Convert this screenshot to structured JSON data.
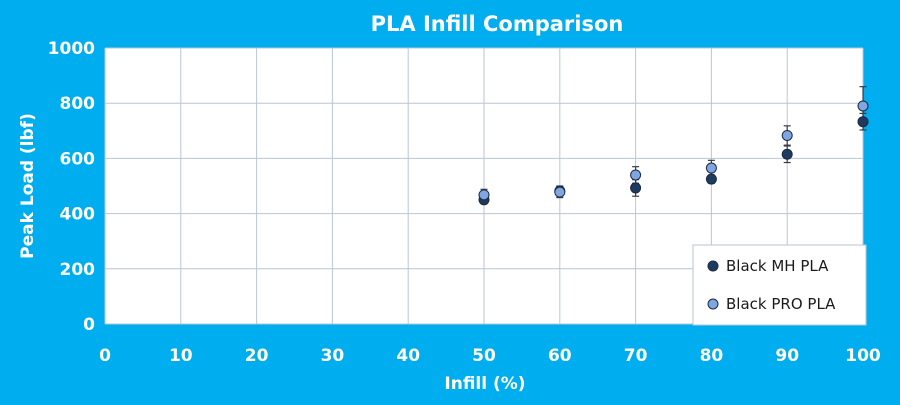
{
  "chart_data": {
    "type": "scatter",
    "title": "PLA Infill Comparison",
    "xlabel": "Infill (%)",
    "ylabel": "Peak Load (lbf)",
    "xlim": [
      0,
      100
    ],
    "ylim": [
      0,
      1000
    ],
    "xticks": [
      0,
      10,
      20,
      30,
      40,
      50,
      60,
      70,
      80,
      90,
      100
    ],
    "yticks": [
      0,
      200,
      400,
      600,
      800,
      1000
    ],
    "grid": true,
    "legend_position": "bottom-right",
    "colors": {
      "background": "#00adee",
      "plot_area": "#ffffff",
      "grid": "#b9c6d6",
      "error_bar": "#3a3a4a"
    },
    "series": [
      {
        "name": "Black MH PLA",
        "color": "#1e3a5f",
        "x": [
          50,
          60,
          70,
          80,
          90,
          100
        ],
        "y": [
          450,
          482,
          493,
          525,
          615,
          733
        ],
        "err": [
          10,
          18,
          30,
          15,
          30,
          30
        ]
      },
      {
        "name": "Black PRO PLA",
        "color": "#7fa6e0",
        "x": [
          50,
          60,
          70,
          80,
          90,
          100
        ],
        "y": [
          468,
          478,
          540,
          565,
          683,
          790
        ],
        "err": [
          20,
          20,
          30,
          28,
          35,
          70
        ]
      }
    ]
  }
}
